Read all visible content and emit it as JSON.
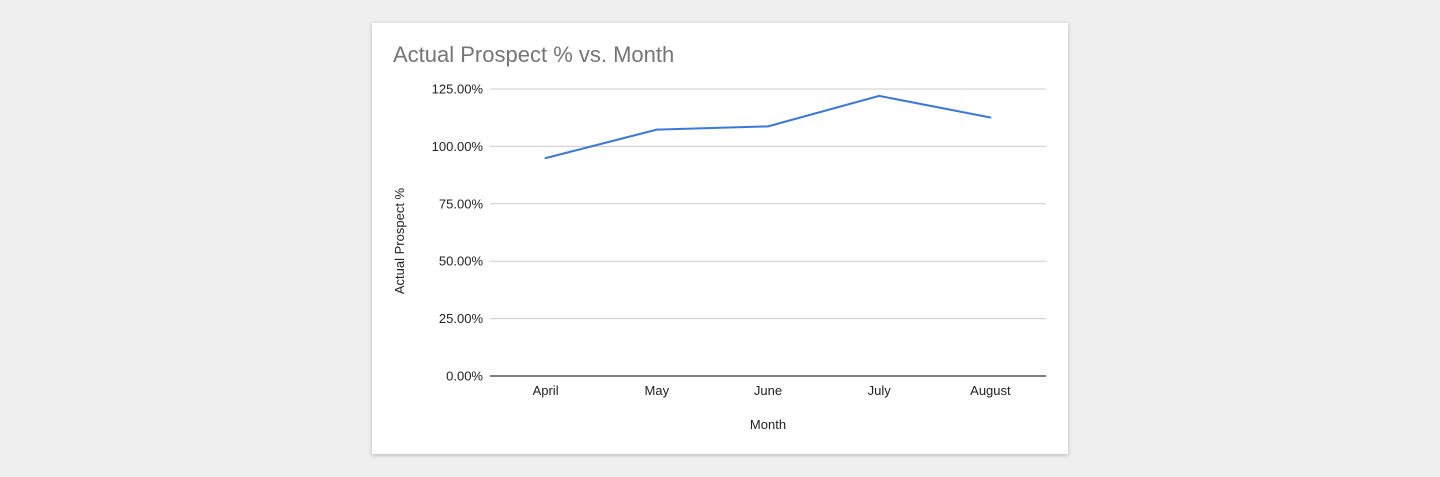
{
  "chart_data": {
    "type": "line",
    "title": "Actual Prospect % vs. Month",
    "xlabel": "Month",
    "ylabel": "Actual Prospect %",
    "categories": [
      "April",
      "May",
      "June",
      "July",
      "August"
    ],
    "series": [
      {
        "values": [
          94.9,
          107.3,
          108.7,
          122.0,
          112.6
        ]
      }
    ],
    "ylim": [
      0,
      125
    ],
    "yticks": [
      0,
      25,
      50,
      75,
      100,
      125
    ],
    "ytick_labels": [
      "0.00%",
      "25.00%",
      "50.00%",
      "75.00%",
      "100.00%",
      "125.00%"
    ],
    "grid": true,
    "legend": "none",
    "line_color": "#3c78d8",
    "grid_color": "#cccccc",
    "axis_color": "#333333"
  }
}
